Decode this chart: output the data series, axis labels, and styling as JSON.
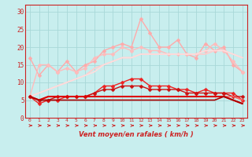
{
  "x": [
    0,
    1,
    2,
    3,
    4,
    5,
    6,
    7,
    8,
    9,
    10,
    11,
    12,
    13,
    14,
    15,
    16,
    17,
    18,
    19,
    20,
    21,
    22,
    23
  ],
  "bg_color": "#c8eeee",
  "grid_color": "#a8d8d8",
  "xlabel": "Vent moyen/en rafales ( km/h )",
  "ylim": [
    0,
    32
  ],
  "xlim": [
    -0.5,
    23.5
  ],
  "yticks": [
    0,
    5,
    10,
    15,
    20,
    25,
    30
  ],
  "tick_color": "#cc2222",
  "series": [
    {
      "values": [
        17,
        12,
        15,
        13,
        16,
        13,
        15,
        16,
        19,
        20,
        21,
        20,
        28,
        24,
        20,
        20,
        22,
        18,
        17,
        21,
        19,
        20,
        15,
        13
      ],
      "color": "#ffaaaa",
      "lw": 1.0,
      "marker": "D",
      "ms": 2.5
    },
    {
      "values": [
        6,
        15,
        15,
        13,
        14,
        13,
        14,
        17,
        18,
        18,
        20,
        19,
        20,
        19,
        19,
        18,
        18,
        18,
        18,
        19,
        21,
        19,
        16,
        13
      ],
      "color": "#ffbbbb",
      "lw": 1.0,
      "marker": "D",
      "ms": 2.5
    },
    {
      "values": [
        6,
        7,
        8,
        9,
        10,
        11,
        12,
        14,
        15,
        16,
        17,
        17,
        18,
        18,
        18,
        18,
        18,
        18,
        18,
        18,
        19,
        19,
        18,
        17
      ],
      "color": "#ffcccc",
      "lw": 1.2,
      "marker": null,
      "ms": 0
    },
    {
      "values": [
        6,
        7,
        8,
        9,
        10,
        11,
        12,
        13,
        15,
        16,
        17,
        17,
        18,
        18,
        18,
        18,
        18,
        18,
        18,
        19,
        19,
        19,
        18,
        17
      ],
      "color": "#ffdddd",
      "lw": 1.2,
      "marker": null,
      "ms": 0
    },
    {
      "values": [
        6,
        4,
        5,
        5,
        6,
        6,
        6,
        7,
        9,
        9,
        10,
        11,
        11,
        9,
        9,
        9,
        8,
        8,
        7,
        8,
        7,
        7,
        7,
        5
      ],
      "color": "#ee2222",
      "lw": 1.0,
      "marker": "D",
      "ms": 2.5
    },
    {
      "values": [
        6,
        5,
        5,
        6,
        6,
        6,
        6,
        7,
        8,
        8,
        9,
        9,
        9,
        8,
        8,
        8,
        8,
        7,
        7,
        7,
        7,
        7,
        6,
        6
      ],
      "color": "#cc1111",
      "lw": 1.0,
      "marker": "D",
      "ms": 2.5
    },
    {
      "values": [
        6,
        5,
        6,
        6,
        6,
        6,
        6,
        6,
        6,
        6,
        6,
        6,
        6,
        6,
        6,
        6,
        6,
        6,
        6,
        6,
        6,
        6,
        6,
        5
      ],
      "color": "#ff6666",
      "lw": 1.2,
      "marker": null,
      "ms": 0
    },
    {
      "values": [
        6,
        5,
        6,
        6,
        6,
        6,
        6,
        6,
        6,
        6,
        6,
        6,
        6,
        6,
        6,
        6,
        6,
        6,
        6,
        6,
        6,
        6,
        5,
        4
      ],
      "color": "#dd0000",
      "lw": 1.5,
      "marker": null,
      "ms": 0
    },
    {
      "values": [
        6,
        5,
        5,
        5,
        5,
        5,
        5,
        5,
        5,
        5,
        5,
        5,
        5,
        5,
        5,
        5,
        5,
        5,
        5,
        5,
        5,
        6,
        5,
        4
      ],
      "color": "#aa0000",
      "lw": 1.2,
      "marker": null,
      "ms": 0
    }
  ],
  "arrow_color": "#cc2222",
  "spine_color": "#cc2222"
}
